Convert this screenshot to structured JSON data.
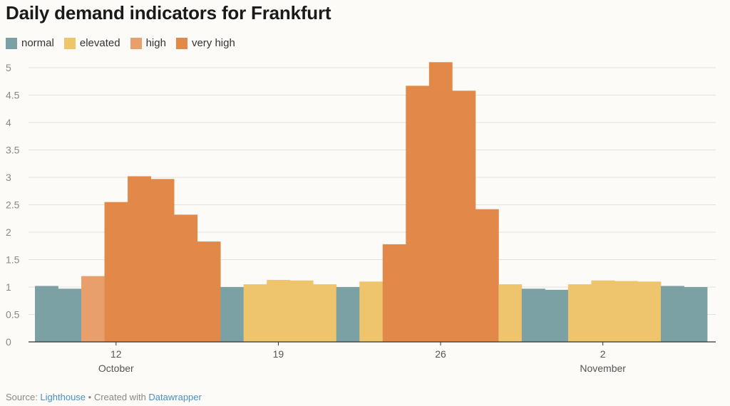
{
  "chart_data": {
    "type": "bar",
    "title": "Daily demand indicators for Frankfurt",
    "legend": [
      {
        "label": "normal",
        "color": "#7ca1a5"
      },
      {
        "label": "elevated",
        "color": "#eec56c"
      },
      {
        "label": "high",
        "color": "#e89f6c"
      },
      {
        "label": "very high",
        "color": "#e2894a"
      }
    ],
    "ylim": [
      0,
      5
    ],
    "yticks": [
      "0",
      "0.5",
      "1",
      "1.5",
      "2",
      "2.5",
      "3",
      "3.5",
      "4",
      "4.5",
      "5"
    ],
    "ytick_values": [
      0,
      0.5,
      1,
      1.5,
      2,
      2.5,
      3,
      3.5,
      4,
      4.5,
      5
    ],
    "xticks": [
      {
        "day_index": 3,
        "label": "12",
        "sublabel": "October"
      },
      {
        "day_index": 10,
        "label": "19",
        "sublabel": ""
      },
      {
        "day_index": 17,
        "label": "26",
        "sublabel": ""
      },
      {
        "day_index": 24,
        "label": "2",
        "sublabel": "November"
      }
    ],
    "series": [
      {
        "date": "Oct 9",
        "value": 1.02,
        "level": "normal"
      },
      {
        "date": "Oct 10",
        "value": 0.97,
        "level": "normal"
      },
      {
        "date": "Oct 11",
        "value": 1.2,
        "level": "high"
      },
      {
        "date": "Oct 12",
        "value": 2.55,
        "level": "very high"
      },
      {
        "date": "Oct 13",
        "value": 3.02,
        "level": "very high"
      },
      {
        "date": "Oct 14",
        "value": 2.97,
        "level": "very high"
      },
      {
        "date": "Oct 15",
        "value": 2.32,
        "level": "very high"
      },
      {
        "date": "Oct 16",
        "value": 1.83,
        "level": "very high"
      },
      {
        "date": "Oct 17",
        "value": 1.0,
        "level": "normal"
      },
      {
        "date": "Oct 18",
        "value": 1.05,
        "level": "elevated"
      },
      {
        "date": "Oct 19",
        "value": 1.13,
        "level": "elevated"
      },
      {
        "date": "Oct 20",
        "value": 1.12,
        "level": "elevated"
      },
      {
        "date": "Oct 21",
        "value": 1.05,
        "level": "elevated"
      },
      {
        "date": "Oct 22",
        "value": 1.0,
        "level": "normal"
      },
      {
        "date": "Oct 23",
        "value": 1.1,
        "level": "elevated"
      },
      {
        "date": "Oct 24",
        "value": 1.78,
        "level": "very high"
      },
      {
        "date": "Oct 25",
        "value": 4.67,
        "level": "very high"
      },
      {
        "date": "Oct 26",
        "value": 5.1,
        "level": "very high"
      },
      {
        "date": "Oct 27",
        "value": 4.58,
        "level": "very high"
      },
      {
        "date": "Oct 28",
        "value": 2.42,
        "level": "very high"
      },
      {
        "date": "Oct 29",
        "value": 1.05,
        "level": "elevated"
      },
      {
        "date": "Oct 30",
        "value": 0.97,
        "level": "normal"
      },
      {
        "date": "Oct 31",
        "value": 0.95,
        "level": "normal"
      },
      {
        "date": "Nov 1",
        "value": 1.05,
        "level": "elevated"
      },
      {
        "date": "Nov 2",
        "value": 1.12,
        "level": "elevated"
      },
      {
        "date": "Nov 3",
        "value": 1.11,
        "level": "elevated"
      },
      {
        "date": "Nov 4",
        "value": 1.1,
        "level": "elevated"
      },
      {
        "date": "Nov 5",
        "value": 1.02,
        "level": "normal"
      },
      {
        "date": "Nov 6",
        "value": 1.0,
        "level": "normal"
      }
    ],
    "grid": true
  },
  "footer": {
    "source_prefix": "Source: ",
    "source_link": "Lighthouse",
    "separator": " • Created with ",
    "tool_link": "Datawrapper"
  }
}
